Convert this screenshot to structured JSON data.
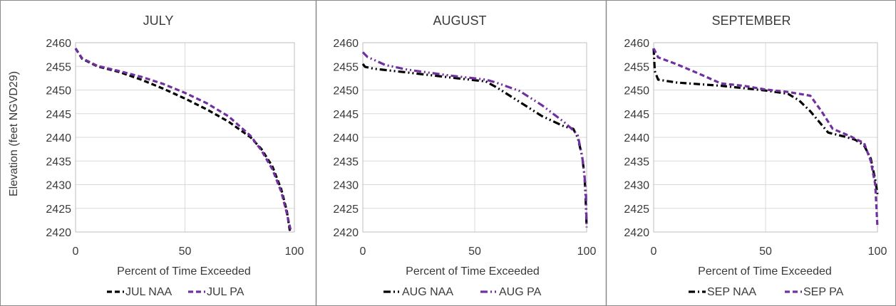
{
  "y_axis_label": "Elevation (feet NGVD29)",
  "chart_data": [
    {
      "type": "line",
      "title": "JULY",
      "xlabel": "Percent of Time Exceeded",
      "ylabel": "Elevation (feet NGVD29)",
      "xlim": [
        0,
        100
      ],
      "ylim": [
        2420,
        2460
      ],
      "x_ticks": [
        0,
        50,
        100
      ],
      "y_ticks": [
        2420,
        2425,
        2430,
        2435,
        2440,
        2445,
        2450,
        2455,
        2460
      ],
      "grid": true,
      "legend_position": "bottom",
      "series": [
        {
          "name": "JUL NAA",
          "color": "#000000",
          "dash": "dashed",
          "points": [
            [
              0,
              2458.8
            ],
            [
              3,
              2456.6
            ],
            [
              10,
              2455
            ],
            [
              20,
              2453.8
            ],
            [
              30,
              2452.2
            ],
            [
              40,
              2450.3
            ],
            [
              50,
              2448.2
            ],
            [
              60,
              2445.9
            ],
            [
              70,
              2443.3
            ],
            [
              80,
              2440
            ],
            [
              85,
              2437.5
            ],
            [
              90,
              2433.8
            ],
            [
              94,
              2429
            ],
            [
              96.5,
              2424.5
            ],
            [
              98,
              2420
            ]
          ]
        },
        {
          "name": "JUL  PA",
          "color": "#7030a0",
          "dash": "dashed",
          "points": [
            [
              0,
              2458.8
            ],
            [
              3,
              2456.7
            ],
            [
              10,
              2455.1
            ],
            [
              20,
              2454
            ],
            [
              30,
              2452.8
            ],
            [
              40,
              2451.3
            ],
            [
              50,
              2449.4
            ],
            [
              60,
              2447.2
            ],
            [
              70,
              2444.4
            ],
            [
              80,
              2440.3
            ],
            [
              85,
              2437.2
            ],
            [
              90,
              2433.2
            ],
            [
              94,
              2428.5
            ],
            [
              96.5,
              2424
            ],
            [
              98.5,
              2420
            ]
          ]
        }
      ]
    },
    {
      "type": "line",
      "title": "AUGUST",
      "xlabel": "Percent of Time Exceeded",
      "ylabel": "",
      "xlim": [
        0,
        100
      ],
      "ylim": [
        2420,
        2460
      ],
      "x_ticks": [
        0,
        50,
        100
      ],
      "y_ticks": [
        2420,
        2425,
        2430,
        2435,
        2440,
        2445,
        2450,
        2455,
        2460
      ],
      "grid": true,
      "legend_position": "bottom",
      "series": [
        {
          "name": "AUG NAA",
          "color": "#000000",
          "dash": "dashdotdot",
          "points": [
            [
              0,
              2455.5
            ],
            [
              1,
              2454.9
            ],
            [
              5,
              2454.5
            ],
            [
              20,
              2453.7
            ],
            [
              40,
              2452.6
            ],
            [
              55,
              2451.8
            ],
            [
              60,
              2450.5
            ],
            [
              70,
              2447.5
            ],
            [
              80,
              2444.5
            ],
            [
              90,
              2442.3
            ],
            [
              94,
              2441.8
            ],
            [
              96,
              2440
            ],
            [
              98,
              2436
            ],
            [
              99,
              2432
            ],
            [
              99.5,
              2428
            ],
            [
              100,
              2421
            ]
          ]
        },
        {
          "name": "AUG  PA",
          "color": "#7030a0",
          "dash": "dashdotdot",
          "points": [
            [
              0,
              2458
            ],
            [
              2,
              2457
            ],
            [
              10,
              2455.3
            ],
            [
              20,
              2454.3
            ],
            [
              40,
              2453
            ],
            [
              55,
              2452.2
            ],
            [
              60,
              2451.5
            ],
            [
              70,
              2449.8
            ],
            [
              80,
              2446.8
            ],
            [
              90,
              2443.2
            ],
            [
              94,
              2441.5
            ],
            [
              96,
              2440.5
            ],
            [
              98,
              2436
            ],
            [
              99,
              2432
            ],
            [
              99.7,
              2428
            ],
            [
              100,
              2421
            ]
          ]
        }
      ]
    },
    {
      "type": "line",
      "title": "SEPTEMBER",
      "xlabel": "Percent of Time Exceeded",
      "ylabel": "",
      "xlim": [
        0,
        100
      ],
      "ylim": [
        2420,
        2460
      ],
      "x_ticks": [
        0,
        50,
        100
      ],
      "y_ticks": [
        2420,
        2425,
        2430,
        2435,
        2440,
        2445,
        2450,
        2455,
        2460
      ],
      "grid": true,
      "legend_position": "bottom",
      "series": [
        {
          "name": "SEP NAA",
          "color": "#000000",
          "dash": "dashdot",
          "points": [
            [
              0,
              2458.8
            ],
            [
              0.5,
              2454
            ],
            [
              2,
              2452.2
            ],
            [
              10,
              2451.6
            ],
            [
              30,
              2450.9
            ],
            [
              50,
              2449.9
            ],
            [
              60,
              2449.2
            ],
            [
              65,
              2447.8
            ],
            [
              70,
              2445.5
            ],
            [
              78,
              2441
            ],
            [
              85,
              2440.2
            ],
            [
              90,
              2439.5
            ],
            [
              94,
              2438.3
            ],
            [
              97,
              2435.5
            ],
            [
              99,
              2431
            ],
            [
              100,
              2428
            ]
          ]
        },
        {
          "name": "SEP  PA",
          "color": "#7030a0",
          "dash": "dashed",
          "points": [
            [
              0,
              2458.8
            ],
            [
              2,
              2456.9
            ],
            [
              10,
              2455.5
            ],
            [
              20,
              2453.5
            ],
            [
              30,
              2451.4
            ],
            [
              40,
              2450.9
            ],
            [
              50,
              2450.1
            ],
            [
              60,
              2449.6
            ],
            [
              70,
              2448.8
            ],
            [
              75,
              2445.5
            ],
            [
              80,
              2441.8
            ],
            [
              88,
              2440.2
            ],
            [
              94,
              2438.8
            ],
            [
              97,
              2435
            ],
            [
              99,
              2430
            ],
            [
              100,
              2421
            ]
          ]
        }
      ]
    }
  ]
}
